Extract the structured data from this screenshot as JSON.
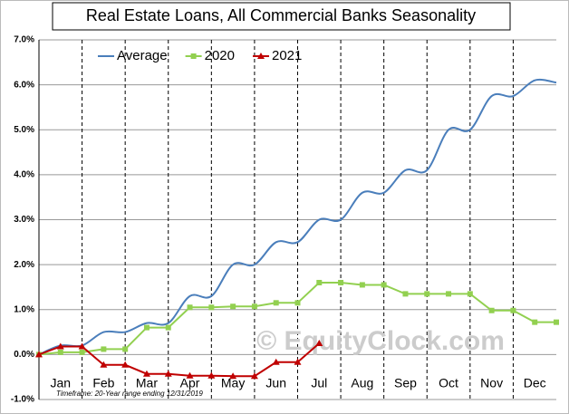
{
  "chart_data": {
    "type": "line",
    "title": "Real Estate Loans, All Commercial Banks Seasonality",
    "watermark": "© EquityClock.com",
    "footnote": "Timeframe: 20-Year range ending 12/31/2019",
    "categories": [
      null,
      "Jan",
      null,
      "Feb",
      null,
      "Mar",
      null,
      "Apr",
      null,
      "May",
      null,
      "Jun",
      null,
      "Jul",
      null,
      "Aug",
      null,
      "Sep",
      null,
      "Oct",
      null,
      "Nov",
      null,
      "Dec",
      null
    ],
    "series": [
      {
        "name": "Average",
        "color": "#4a7ebb",
        "marker": "none",
        "smooth": true,
        "values": [
          0,
          0.2,
          0.2,
          0.5,
          0.5,
          0.7,
          0.7,
          1.3,
          1.3,
          2.0,
          2.0,
          2.5,
          2.5,
          3.0,
          3.0,
          3.6,
          3.6,
          4.1,
          4.1,
          5.0,
          5.0,
          5.75,
          5.75,
          6.1,
          6.05
        ]
      },
      {
        "name": "2020",
        "color": "#92d050",
        "marker": "square",
        "smooth": false,
        "values": [
          0,
          0.05,
          0.05,
          0.12,
          0.12,
          0.6,
          0.6,
          1.05,
          1.05,
          1.07,
          1.07,
          1.15,
          1.15,
          1.6,
          1.6,
          1.55,
          1.55,
          1.35,
          1.35,
          1.35,
          1.35,
          0.98,
          0.98,
          0.72,
          0.72
        ]
      },
      {
        "name": "2021",
        "color": "#c00000",
        "marker": "triangle",
        "smooth": false,
        "values": [
          0,
          0.18,
          0.18,
          -0.23,
          -0.23,
          -0.43,
          -0.43,
          -0.47,
          -0.47,
          -0.48,
          -0.48,
          -0.17,
          -0.17,
          0.25,
          null,
          null,
          null,
          null,
          null,
          null,
          null,
          null,
          null,
          null,
          null
        ]
      }
    ],
    "ylim": [
      -1,
      7
    ],
    "yticks": [
      {
        "value": -1,
        "label": "-1.0%"
      },
      {
        "value": 0,
        "label": "0.0%"
      },
      {
        "value": 1,
        "label": "1.0%"
      },
      {
        "value": 2,
        "label": "2.0%"
      },
      {
        "value": 3,
        "label": "3.0%"
      },
      {
        "value": 4,
        "label": "4.0%"
      },
      {
        "value": 5,
        "label": "5.0%"
      },
      {
        "value": 6,
        "label": "6.0%"
      },
      {
        "value": 7,
        "label": "7.0%"
      }
    ],
    "grid": true
  }
}
